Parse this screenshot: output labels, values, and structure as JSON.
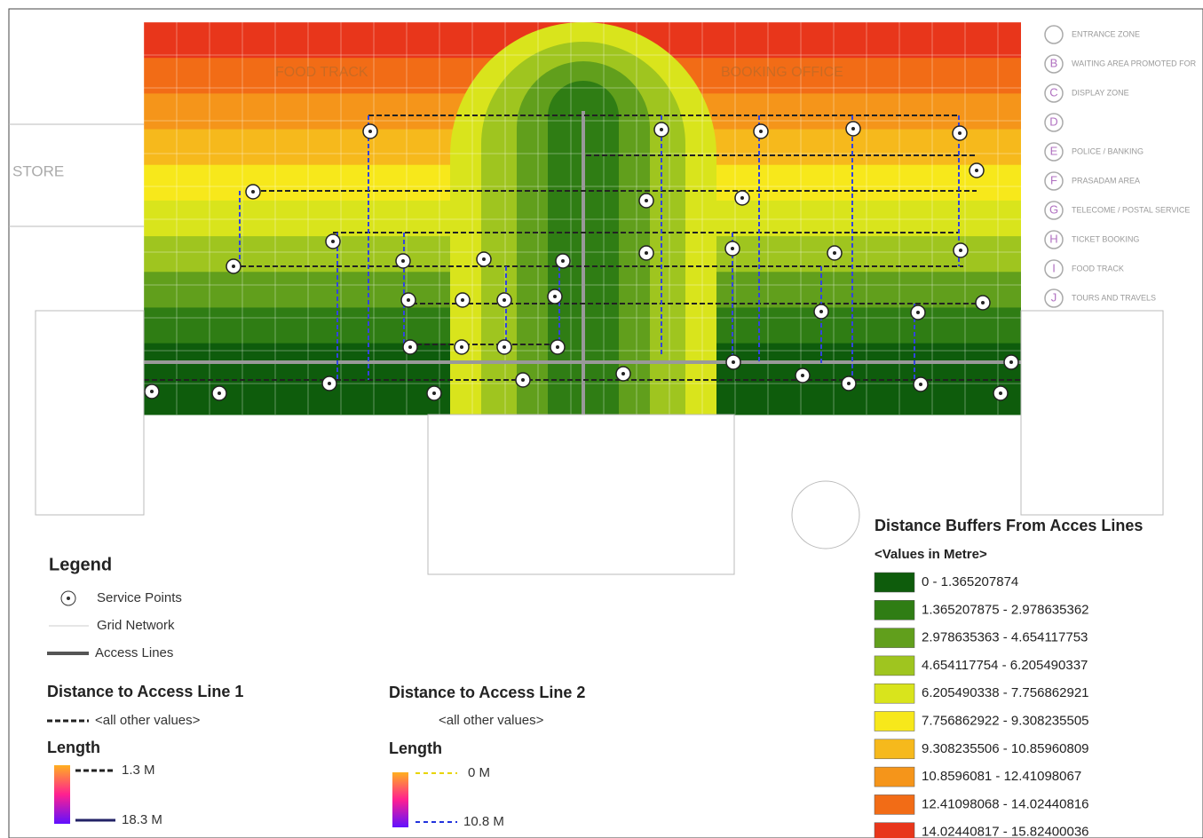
{
  "map_labels": [
    "STORE",
    "FOOD TRACK",
    "BOOKING OFFICE"
  ],
  "zones": [
    {
      "letter": "",
      "label": "ENTRANCE ZONE"
    },
    {
      "letter": "B",
      "label": "WAITING AREA PROMOTED FOR"
    },
    {
      "letter": "C",
      "label": "DISPLAY ZONE"
    },
    {
      "letter": "D",
      "label": ""
    },
    {
      "letter": "E",
      "label": "POLICE / BANKING"
    },
    {
      "letter": "F",
      "label": "PRASADAM AREA"
    },
    {
      "letter": "G",
      "label": "TELECOME / POSTAL SERVICE"
    },
    {
      "letter": "H",
      "label": "TICKET BOOKING"
    },
    {
      "letter": "I",
      "label": "FOOD TRACK"
    },
    {
      "letter": "J",
      "label": "TOURS AND TRAVELS"
    }
  ],
  "legend": {
    "title": "Legend",
    "items": [
      "Service Points",
      "Grid Network",
      "Access Lines"
    ]
  },
  "line1": {
    "title": "Distance to Access Line 1",
    "other": "<all other values>",
    "length_title": "Length",
    "min": "1.3 M",
    "max": "18.3 M"
  },
  "line2": {
    "title": "Distance to Access Line 2",
    "other": "<all other values>",
    "length_title": "Length",
    "min": "0 M",
    "max": "10.8 M"
  },
  "buffers": {
    "title": "Distance Buffers From Acces Lines",
    "subtitle": "<Values in Metre>",
    "classes": [
      {
        "label": "0 - 1.365207874",
        "color": "#0e5c0c"
      },
      {
        "label": "1.365207875 - 2.978635362",
        "color": "#2f7d14"
      },
      {
        "label": "2.978635363 - 4.654117753",
        "color": "#619f1c"
      },
      {
        "label": "4.654117754 - 6.205490337",
        "color": "#9fc51f"
      },
      {
        "label": "6.205490338 - 7.756862921",
        "color": "#d9e41c"
      },
      {
        "label": "7.756862922 - 9.308235505",
        "color": "#f7e81b"
      },
      {
        "label": "9.308235506 - 10.85960809",
        "color": "#f6b91c"
      },
      {
        "label": "10.8596081 - 12.41098067",
        "color": "#f5951a"
      },
      {
        "label": "12.41098068 - 14.02440816",
        "color": "#f26c16"
      },
      {
        "label": "14.02440817 - 15.82400036",
        "color": "#e8361b"
      }
    ]
  }
}
